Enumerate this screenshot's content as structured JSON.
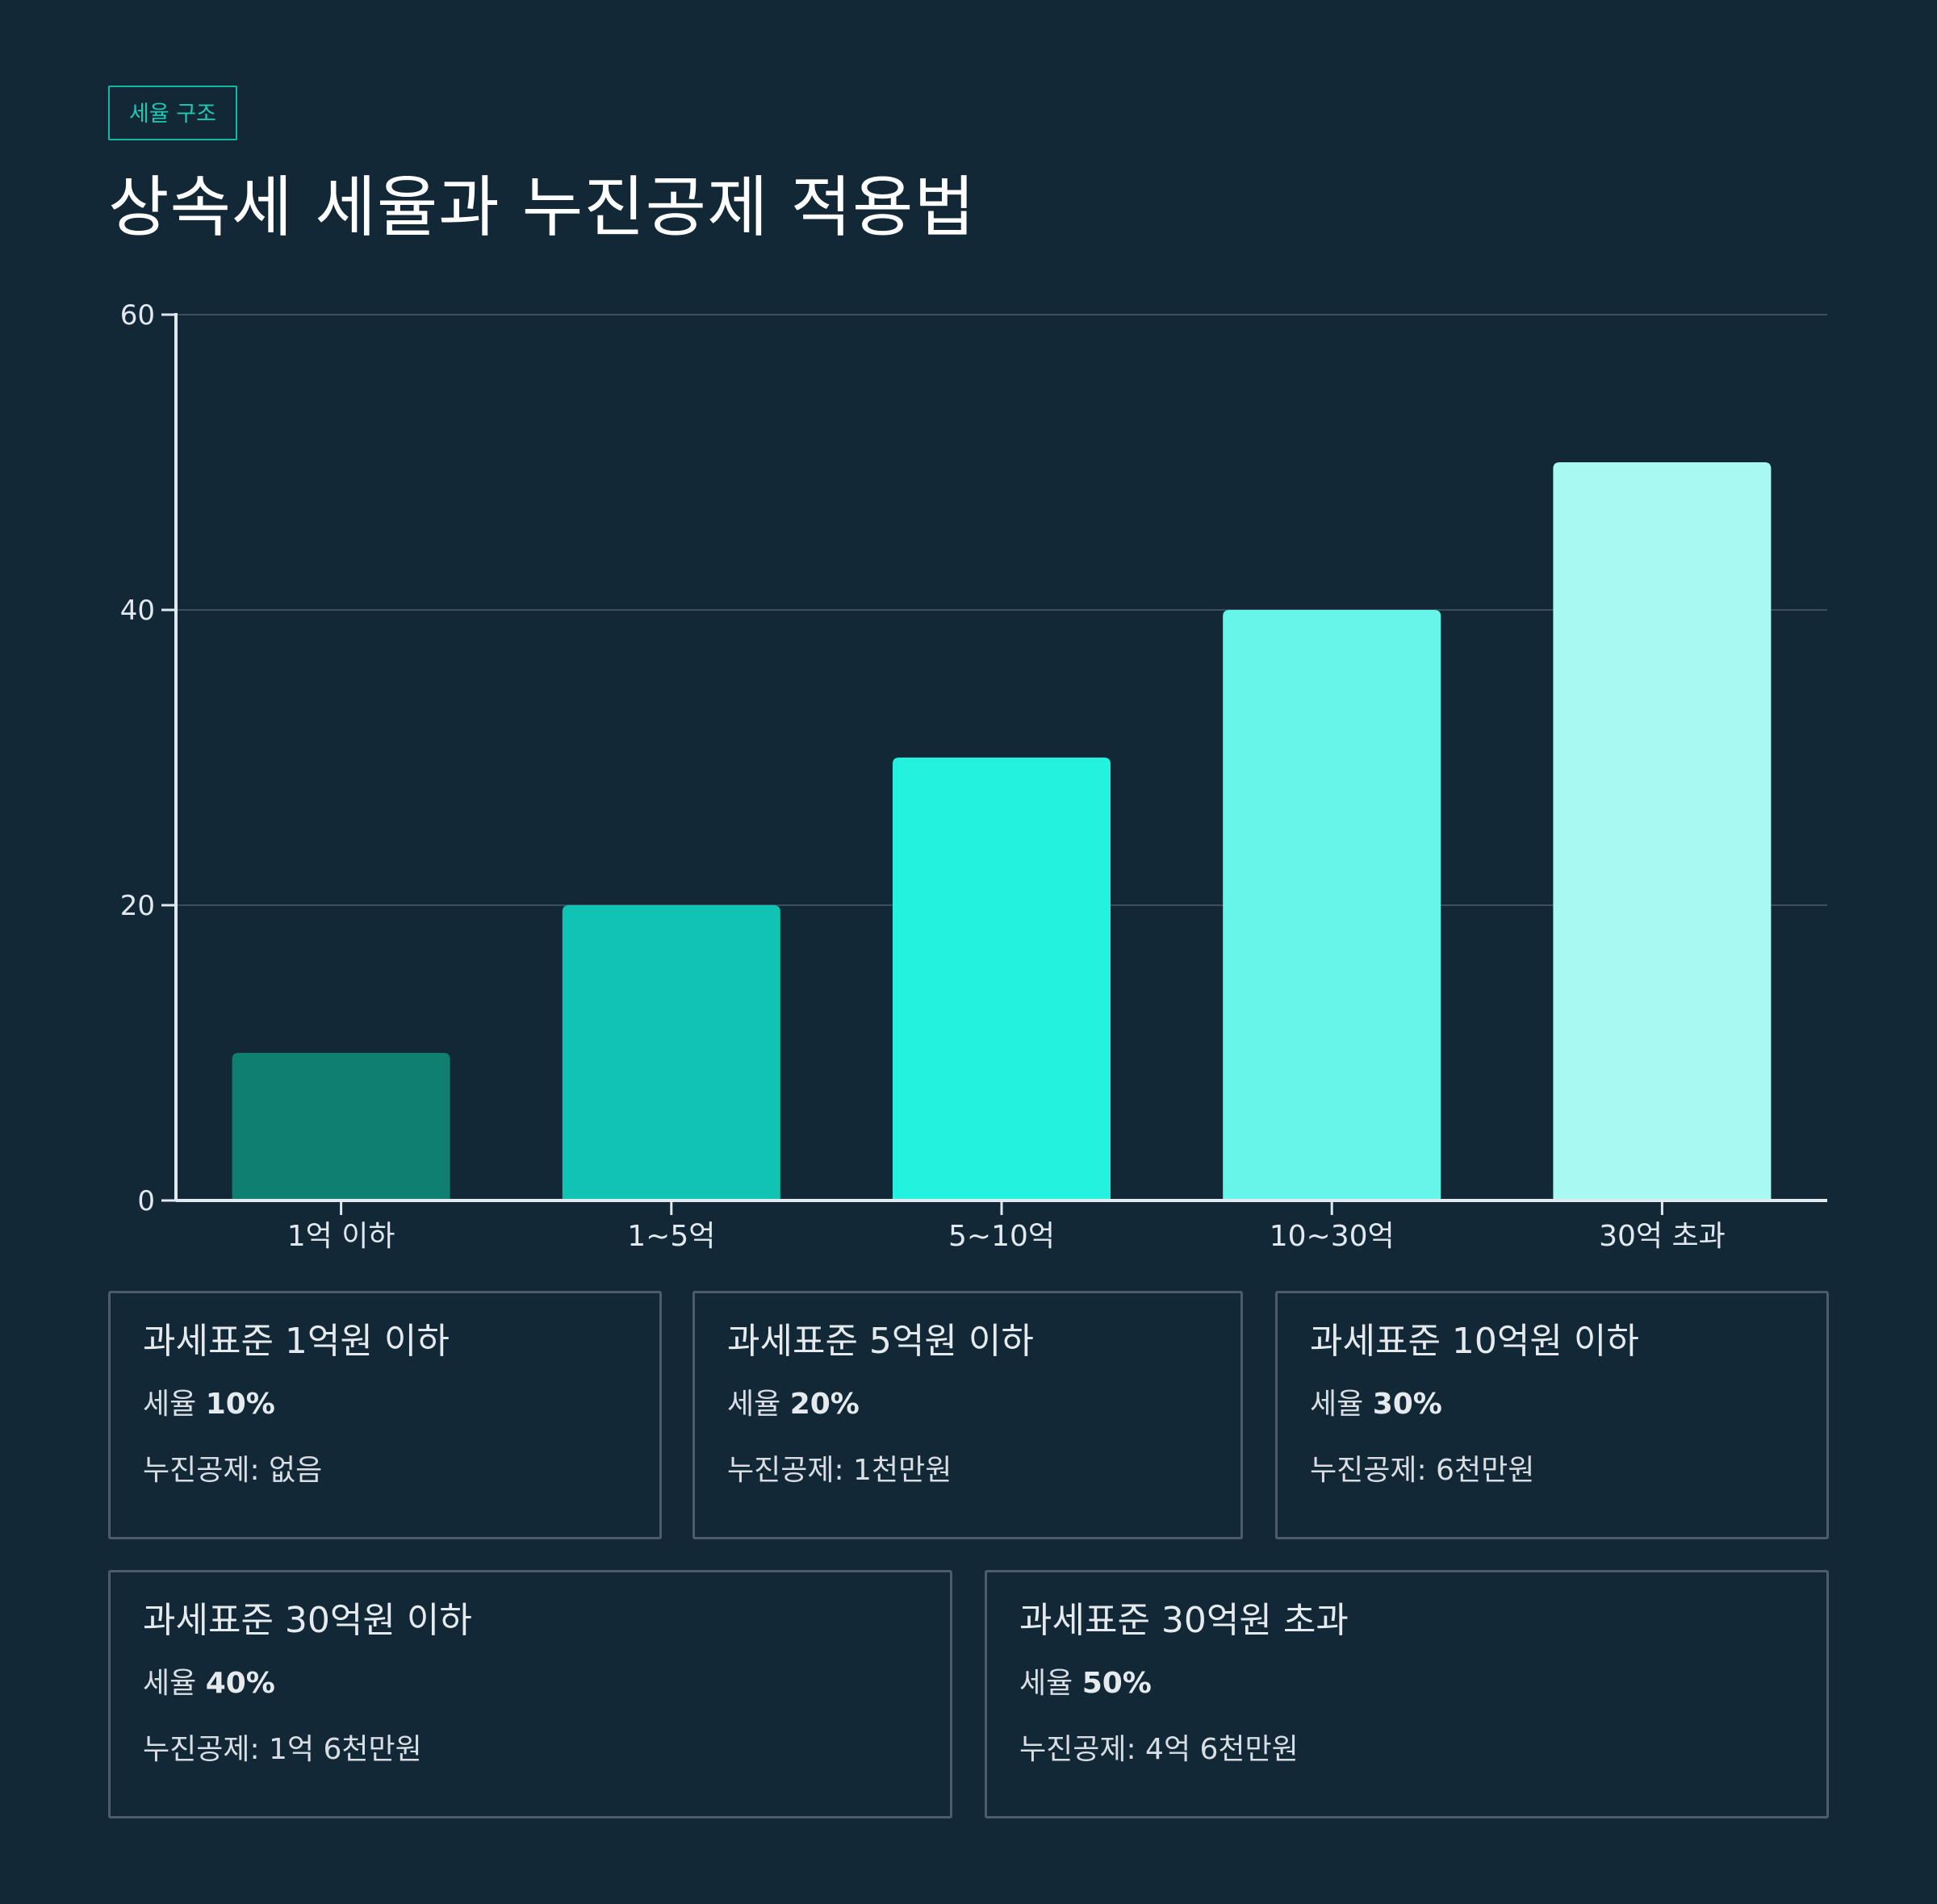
{
  "badge": "세율 구조",
  "title": "상속세 세율과 누진공제 적용법",
  "chart_data": {
    "type": "bar",
    "categories": [
      "1억 이하",
      "1~5억",
      "5~10억",
      "10~30억",
      "30억 초과"
    ],
    "values": [
      10,
      20,
      30,
      40,
      50
    ],
    "ylim": [
      0,
      60
    ],
    "yticks": [
      0,
      20,
      40,
      60
    ],
    "grid": true,
    "colors": [
      "#0f7f72",
      "#10c3b3",
      "#23f2de",
      "#66f5e8",
      "#a8f9f1"
    ]
  },
  "cards": [
    {
      "head": "과세표준 1억원 이하",
      "rate_label": "세율",
      "rate": "10%",
      "deduction": "누진공제: 없음"
    },
    {
      "head": "과세표준 5억원 이하",
      "rate_label": "세율",
      "rate": "20%",
      "deduction": "누진공제: 1천만원"
    },
    {
      "head": "과세표준 10억원 이하",
      "rate_label": "세율",
      "rate": "30%",
      "deduction": "누진공제: 6천만원"
    },
    {
      "head": "과세표준 30억원 이하",
      "rate_label": "세율",
      "rate": "40%",
      "deduction": "누진공제: 1억 6천만원"
    },
    {
      "head": "과세표준 30억원 초과",
      "rate_label": "세율",
      "rate": "50%",
      "deduction": "누진공제: 4억 6천만원"
    }
  ]
}
